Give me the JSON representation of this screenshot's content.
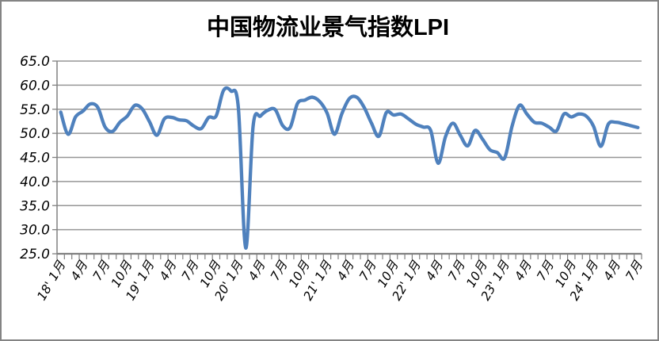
{
  "page": {
    "background": "#FFFFFF",
    "frame_border_color": "#848484",
    "gridline_color": "#969696",
    "axis_color": "#808080"
  },
  "chart_data": {
    "type": "line",
    "title": "中国物流业景气指数LPI",
    "smooth": true,
    "grid": true,
    "legend": false,
    "ylim": [
      25,
      65
    ],
    "y_tick_labels": [
      "65.0",
      "60.0",
      "55.0",
      "50.0",
      "45.0",
      "40.0",
      "35.0",
      "30.0",
      "25.0"
    ],
    "x_tick_label_interval": 3,
    "x_tick_labels": [
      "18' 1月",
      "4月",
      "7月",
      "10月",
      "19' 1月",
      "4月",
      "7月",
      "10月",
      "20' 1月",
      "4月",
      "7月",
      "10月",
      "21' 1月",
      "4月",
      "7月",
      "10月",
      "22' 1月",
      "4月",
      "7月",
      "10月",
      "23' 1月",
      "4月",
      "7月",
      "10月",
      "24' 1月",
      "4月",
      "7月"
    ],
    "start_month": "2018-01",
    "end_month": "2024-07",
    "series": [
      {
        "name": "LPI",
        "color": "#4F81BD",
        "values": [
          54.4,
          49.8,
          53.4,
          54.6,
          56.1,
          55.4,
          51.3,
          50.4,
          52.3,
          53.6,
          55.8,
          55.1,
          52.4,
          49.6,
          53.0,
          53.3,
          52.8,
          52.6,
          51.5,
          51.0,
          53.3,
          53.6,
          58.9,
          58.8,
          55.4,
          26.2,
          51.5,
          53.6,
          54.8,
          54.9,
          51.6,
          51.2,
          56.2,
          56.9,
          57.5,
          56.6,
          54.2,
          49.8,
          54.1,
          57.2,
          57.5,
          55.4,
          52.1,
          49.4,
          54.3,
          53.8,
          54.0,
          53.0,
          51.9,
          51.3,
          50.6,
          43.8,
          49.3,
          52.1,
          49.6,
          47.4,
          50.6,
          48.8,
          46.6,
          46.0,
          44.9,
          51.5,
          55.8,
          54.0,
          52.3,
          52.1,
          51.3,
          50.5,
          54.0,
          53.4,
          54.0,
          53.6,
          51.5,
          47.3,
          51.9,
          52.3,
          52.0,
          51.6,
          51.2
        ]
      }
    ]
  }
}
